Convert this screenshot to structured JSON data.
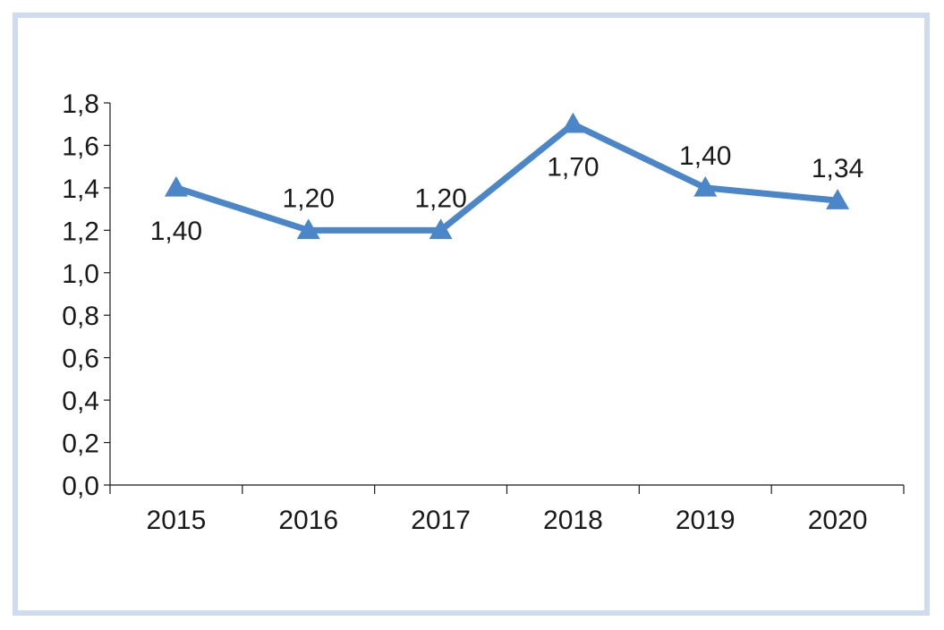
{
  "chart_data": {
    "type": "line",
    "title": "",
    "xlabel": "",
    "ylabel": "",
    "categories": [
      "2015",
      "2016",
      "2017",
      "2018",
      "2019",
      "2020"
    ],
    "series": [
      {
        "name": "",
        "values": [
          1.4,
          1.2,
          1.2,
          1.7,
          1.4,
          1.34
        ],
        "labels": [
          "1,40",
          "1,20",
          "1,20",
          "1,70",
          "1,40",
          "1,34"
        ],
        "color": "#4a86c8",
        "marker": "triangle"
      }
    ],
    "ylim": [
      0,
      1.8
    ],
    "yticks": [
      0,
      0.2,
      0.4,
      0.6,
      0.8,
      1.0,
      1.2,
      1.4,
      1.6,
      1.8
    ],
    "ytick_labels": [
      "0,0",
      "0,2",
      "0,4",
      "0,6",
      "0,8",
      "1,0",
      "1,2",
      "1,4",
      "1,6",
      "1,8"
    ],
    "grid": false,
    "legend": "none",
    "frame_color": "#cfdcf0",
    "axis_color": "#1a1a1a"
  }
}
